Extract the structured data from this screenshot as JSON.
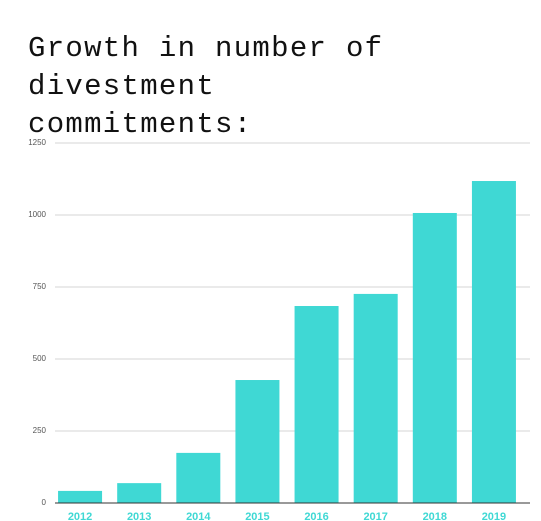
{
  "chart_data": {
    "type": "bar",
    "title": "Growth in number of divestment commitments:",
    "categories": [
      "2012",
      "2013",
      "2014",
      "2015",
      "2016",
      "2017",
      "2018",
      "2019"
    ],
    "values": [
      42,
      69,
      174,
      427,
      684,
      726,
      1007,
      1118
    ],
    "color": "#3fd8d4",
    "ylim": [
      0,
      1250
    ],
    "yticks": [
      0,
      250,
      500,
      750,
      1000,
      1250
    ],
    "grid": true
  }
}
